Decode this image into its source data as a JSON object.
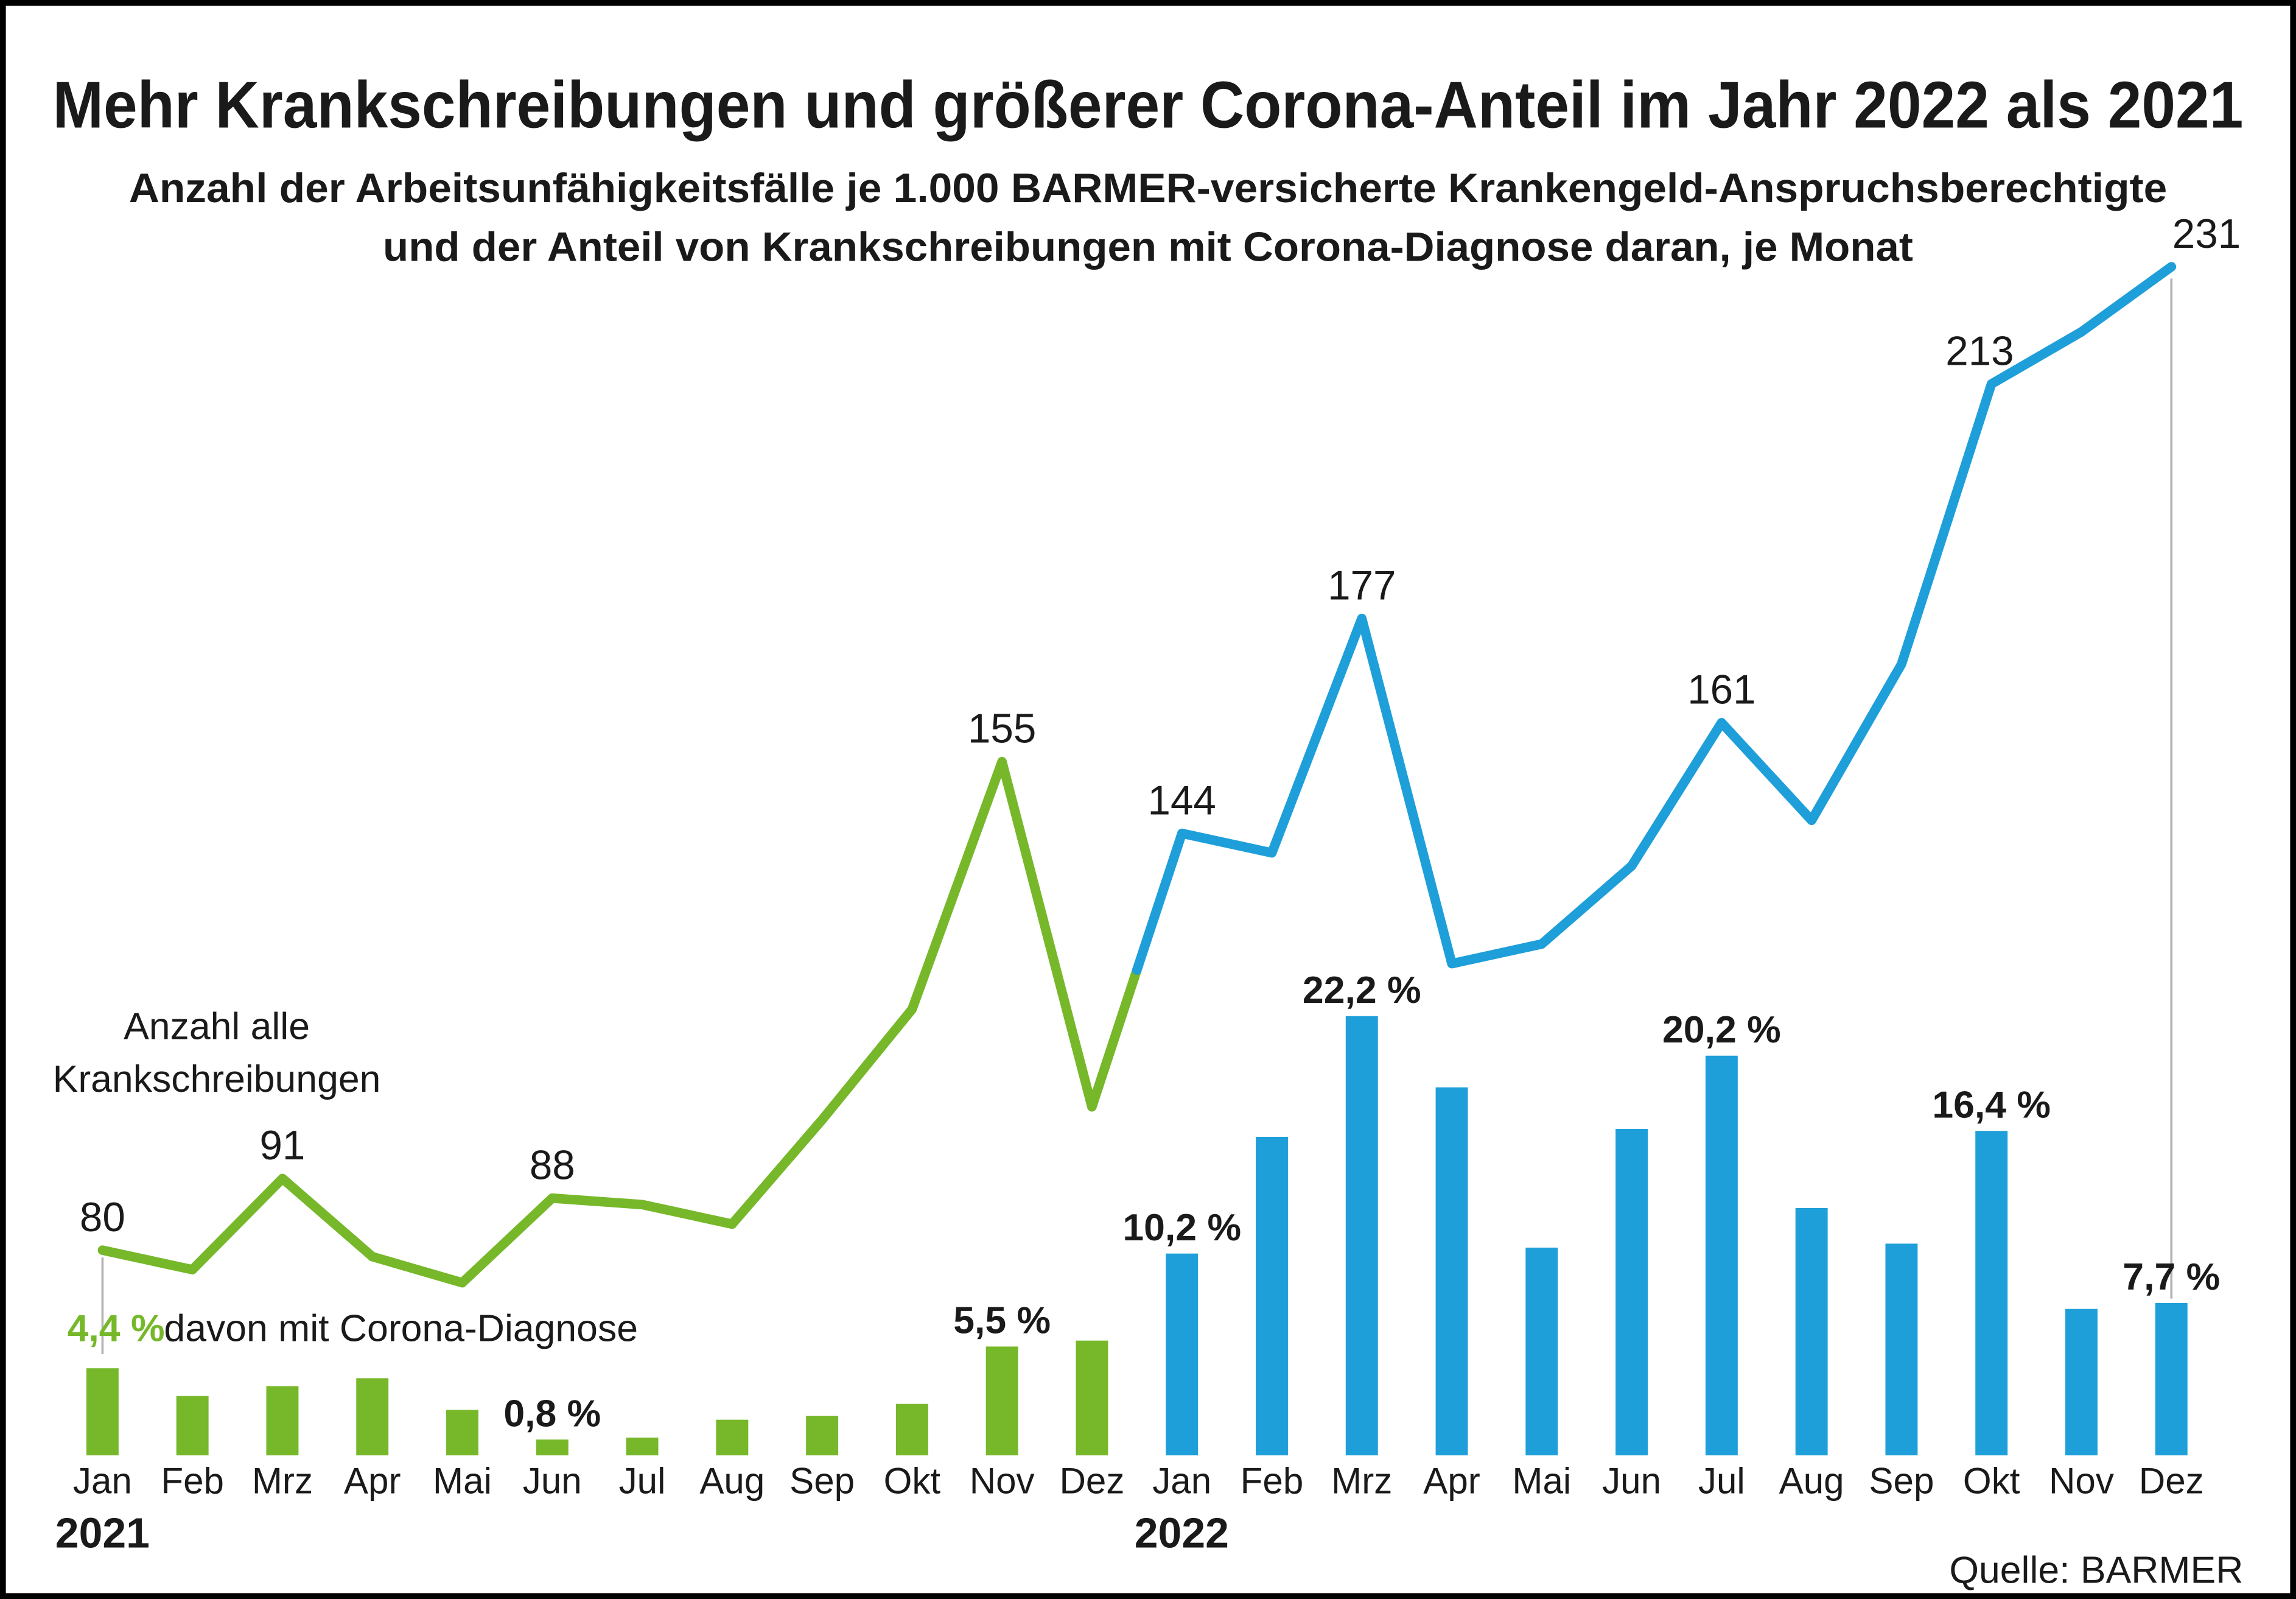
{
  "header": {
    "title": "Mehr Krankschreibungen und größerer Corona-Anteil im Jahr 2022 als 2021",
    "subtitle_line1": "Anzahl der Arbeitsunfähigkeitsfälle je 1.000 BARMER-versicherte Krankengeld-Anspruchsberechtigte",
    "subtitle_line2": "und der Anteil von Krankschreibungen mit Corona-Diagnose daran, je Monat"
  },
  "annotations": {
    "line_label_line1": "Anzahl alle",
    "line_label_line2": "Krankschreibungen",
    "bar_label_pct": "4,4 %",
    "bar_label_text": "davon mit Corona-Diagnose"
  },
  "source": "Quelle: BARMER",
  "colors": {
    "green_2021": "#76b82a",
    "blue_2022": "#1e9fd9",
    "text": "#1a1a1a",
    "leader_line": "#b3b3b3"
  },
  "chart_data": {
    "type": "line+bar combo, monthly",
    "x_months": [
      "Jan",
      "Feb",
      "Mrz",
      "Apr",
      "Mai",
      "Jun",
      "Jul",
      "Aug",
      "Sep",
      "Okt",
      "Nov",
      "Dez",
      "Jan",
      "Feb",
      "Mrz",
      "Apr",
      "Mai",
      "Jun",
      "Jul",
      "Aug",
      "Sep",
      "Okt",
      "Nov",
      "Dez"
    ],
    "years": [
      {
        "label": "2021",
        "months_span": [
          0,
          11
        ]
      },
      {
        "label": "2022",
        "months_span": [
          12,
          23
        ]
      }
    ],
    "line_series": {
      "name": "Anzahl alle Krankschreibungen (AU-Fälle je 1.000 Anspruchsberechtigte)",
      "values": [
        80,
        77,
        91,
        79,
        75,
        88,
        87,
        84,
        100,
        117,
        155,
        102,
        144,
        141,
        177,
        124,
        127,
        139,
        161,
        146,
        170,
        213,
        221,
        231
      ],
      "value_labels": {
        "0": "80",
        "2": "91",
        "5": "88",
        "10": "155",
        "12": "144",
        "14": "177",
        "18": "161",
        "21": "213",
        "23": "231"
      }
    },
    "bar_series": {
      "name": "davon mit Corona-Diagnose",
      "unit": "%",
      "values": [
        4.4,
        3.0,
        3.5,
        3.9,
        2.3,
        0.8,
        0.9,
        1.8,
        2.0,
        2.6,
        5.5,
        5.8,
        10.2,
        16.1,
        22.2,
        18.6,
        10.5,
        16.5,
        20.2,
        12.5,
        10.7,
        16.4,
        7.4,
        7.7
      ],
      "value_labels": {
        "5": "0,8 %",
        "10": "5,5 %",
        "12": "10,2 %",
        "14": "22,2 %",
        "18": "20,2 %",
        "21": "16,4 %",
        "23": "7,7 %"
      }
    }
  }
}
